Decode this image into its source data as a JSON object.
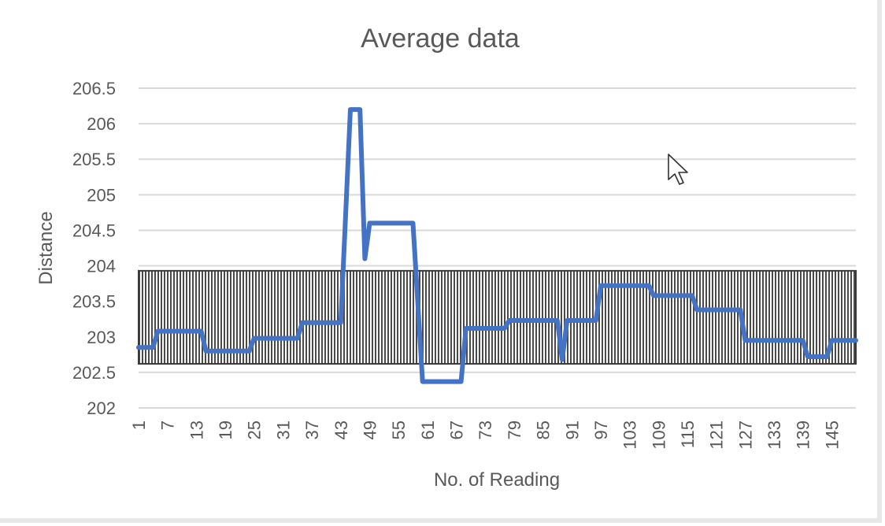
{
  "chart_data": {
    "type": "line",
    "title": "Average data",
    "xlabel": "No. of Reading",
    "ylabel": "Distance",
    "ylim": [
      202,
      206.5
    ],
    "xlim": [
      1,
      150
    ],
    "yticks": [
      "202",
      "202.5",
      "203",
      "203.5",
      "204",
      "204.5",
      "205",
      "205.5",
      "206",
      "206.5"
    ],
    "xticks": [
      "1",
      "7",
      "13",
      "19",
      "25",
      "31",
      "37",
      "43",
      "49",
      "55",
      "61",
      "67",
      "73",
      "79",
      "85",
      "91",
      "97",
      "103",
      "109",
      "115",
      "121",
      "127",
      "133",
      "139",
      "145"
    ],
    "grid": true,
    "band": {
      "from": 202.62,
      "to": 203.93
    },
    "series_color": "#4472c4",
    "series": [
      {
        "points": [
          [
            1,
            202.85
          ],
          [
            4,
            202.85
          ],
          [
            5,
            203.08
          ],
          [
            14,
            203.08
          ],
          [
            15,
            202.8
          ],
          [
            24,
            202.8
          ],
          [
            25,
            202.98
          ],
          [
            34,
            202.98
          ],
          [
            35,
            203.2
          ],
          [
            43,
            203.2
          ],
          [
            45,
            206.2
          ],
          [
            47,
            206.2
          ],
          [
            48,
            204.1
          ],
          [
            49,
            204.6
          ],
          [
            58,
            204.6
          ],
          [
            60,
            202.37
          ],
          [
            68,
            202.37
          ],
          [
            69,
            203.12
          ],
          [
            77,
            203.12
          ],
          [
            78,
            203.23
          ],
          [
            88,
            203.23
          ],
          [
            89,
            202.68
          ],
          [
            90,
            203.23
          ],
          [
            96,
            203.23
          ],
          [
            97,
            203.72
          ],
          [
            107,
            203.72
          ],
          [
            108,
            203.58
          ],
          [
            116,
            203.58
          ],
          [
            117,
            203.38
          ],
          [
            126,
            203.38
          ],
          [
            127,
            202.95
          ],
          [
            139,
            202.95
          ],
          [
            140,
            202.72
          ],
          [
            144,
            202.72
          ],
          [
            145,
            202.95
          ],
          [
            150,
            202.95
          ]
        ]
      }
    ]
  },
  "cursor": {
    "icon": "mouse-pointer-icon"
  }
}
